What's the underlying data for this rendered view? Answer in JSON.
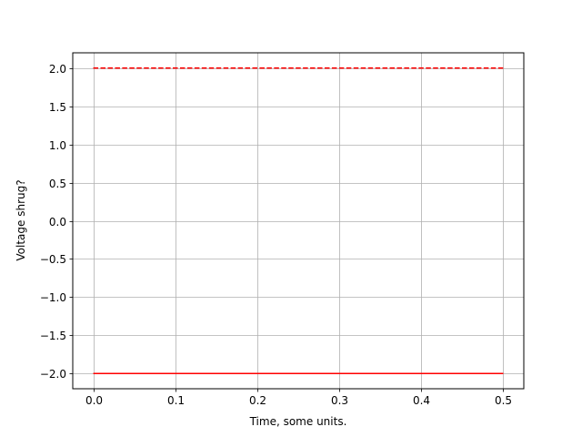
{
  "chart_data": {
    "type": "line",
    "title": "",
    "xlabel": "Time, some units.",
    "ylabel": "Voltage shrug?",
    "xlim": [
      -0.025,
      0.525
    ],
    "ylim": [
      -2.2,
      2.2
    ],
    "grid": true,
    "xticks": [
      0.0,
      0.1,
      0.2,
      0.3,
      0.4,
      0.5
    ],
    "xtick_labels": [
      "0.0",
      "0.1",
      "0.2",
      "0.3",
      "0.4",
      "0.5"
    ],
    "yticks": [
      -2.0,
      -1.5,
      -1.0,
      -0.5,
      0.0,
      0.5,
      1.0,
      1.5,
      2.0
    ],
    "ytick_labels": [
      "−2.0",
      "−1.5",
      "−1.0",
      "−0.5",
      "0.0",
      "0.5",
      "1.0",
      "1.5",
      "2.0"
    ],
    "series": [
      {
        "x": [
          0.0,
          0.5
        ],
        "y": [
          2.0,
          2.0
        ],
        "color": "#ff0000",
        "linestyle": "dashed"
      },
      {
        "x": [
          0.0,
          0.5
        ],
        "y": [
          -2.0,
          -2.0
        ],
        "color": "#ff0000",
        "linestyle": "solid"
      }
    ]
  }
}
